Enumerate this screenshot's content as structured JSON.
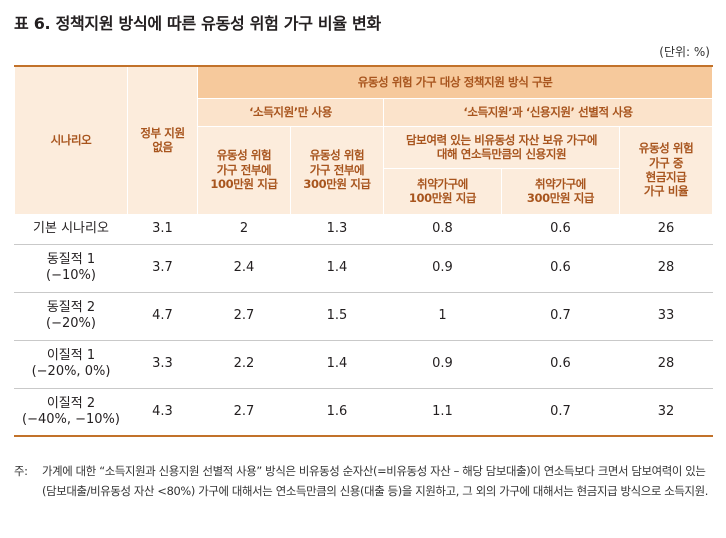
{
  "title": "표 6.  정책지원 방식에 따른 유동성 위험 가구 비율 변화",
  "unit": "(단위: %)",
  "header": {
    "scenario": "시나리오",
    "no_support": "정부 지원\n없음",
    "group_main": "유동성 위험 가구 대상 정책지원 방식 구분",
    "group_income": "‘소득지원’만 사용",
    "group_selective": "‘소득지원’과 ‘신용지원’ 선별적 사용",
    "col_100": "유동성 위험\n가구 전부에\n100만원 지급",
    "col_300": "유동성 위험\n가구 전부에\n300만원 지급",
    "col_collateral": "담보여력 있는 비유동성 자산 보유 가구에\n대해 연소득만큼의 신용지원",
    "col_vuln100": "취약가구에\n100만원 지급",
    "col_vuln300": "취약가구에\n300만원 지급",
    "col_cash_ratio": "유동성 위험\n가구 중\n현금지급\n가구 비율"
  },
  "rows": [
    {
      "scenario": "기본 시나리오",
      "v": [
        "3.1",
        "2",
        "1.3",
        "0.8",
        "0.6",
        "26"
      ]
    },
    {
      "scenario": "동질적 1\n(−10%)",
      "v": [
        "3.7",
        "2.4",
        "1.4",
        "0.9",
        "0.6",
        "28"
      ]
    },
    {
      "scenario": "동질적 2\n(−20%)",
      "v": [
        "4.7",
        "2.7",
        "1.5",
        "1",
        "0.7",
        "33"
      ]
    },
    {
      "scenario": "이질적 1\n(−20%, 0%)",
      "v": [
        "3.3",
        "2.2",
        "1.4",
        "0.9",
        "0.6",
        "28"
      ]
    },
    {
      "scenario": "이질적 2\n(−40%, −10%)",
      "v": [
        "4.3",
        "2.7",
        "1.6",
        "1.1",
        "0.7",
        "32"
      ]
    }
  ],
  "note_label": "주:",
  "note_text": "가계에 대한 “소득지원과 신용지원 선별적 사용” 방식은 비유동성 순자산(=비유동성 자산 – 해당 담보대출)이 연소득보다 크면서 담보여력이 있는(담보대출/비유동성 자산 <80%) 가구에 대해서는 연소득만큼의 신용(대출 등)을 지원하고, 그 외의 가구에 대해서는 현금지급 방식으로 소득지원."
}
